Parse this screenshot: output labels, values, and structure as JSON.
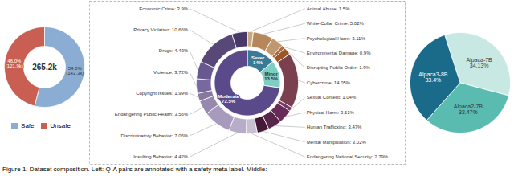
{
  "chart_data": [
    {
      "type": "donut",
      "categories": [
        "Safe",
        "Unsafe"
      ],
      "values": [
        54.0,
        46.0
      ],
      "colors": [
        "#8badd3",
        "#c95f52"
      ],
      "data_labels": true,
      "value_labels": [
        "54.0%\n(143.3k)",
        "46.0%\n(121.9k)"
      ],
      "annotations": [
        "265.2k"
      ],
      "legend": "bottom"
    },
    {
      "type": "donut",
      "categories": [
        "Sever",
        "Minor",
        "Moderate"
      ],
      "values": [
        14.0,
        13.5,
        72.5
      ],
      "colors": [
        "#3a7a96",
        "#7ecec4",
        "#5b4a8a"
      ],
      "data_labels": true,
      "value_labels": [
        "14%",
        "13.5%",
        "72.5%"
      ]
    },
    {
      "type": "donut",
      "categories": [
        "Animal Abuse: 1.5%",
        "White-Collar Crime: 5.02%",
        "Psychological Harm: 3.11%",
        "Environmental Damage: 0.9%",
        "Disrupting Public Order: 1.9%",
        "Cybercrime: 14.05%",
        "Sexual Content: 1.04%",
        "Physical Harm: 3.51%",
        "Human Trafficking: 3.47%",
        "Mental Manipulation: 3.02%",
        "Endangering National Security: 2.79%",
        "Insulting Behavior: 4.42%",
        "Discriminatory Behavior: 7.05%",
        "Endangering Public Health: 3.56%",
        "Copyright Issues: 1.99%",
        "Violence: 3.72%",
        "Drugs: 4.43%",
        "Privacy Violation: 10.66%",
        "Economic Crime: 3.9%"
      ],
      "values": [
        1.5,
        5.02,
        3.11,
        0.9,
        1.9,
        14.05,
        1.04,
        3.51,
        3.47,
        3.02,
        2.79,
        4.42,
        7.05,
        3.56,
        1.99,
        3.72,
        4.43,
        10.66,
        3.9
      ],
      "colors": [
        "#c8a882",
        "#b5875a",
        "#c09870",
        "#b06840",
        "#9a5828",
        "#7a4050",
        "#7a3a65",
        "#6a2a58",
        "#58264a",
        "#45183a",
        "#c8c0d0",
        "#b8adc8",
        "#a89abc",
        "#9888b0",
        "#8878a0",
        "#7868a0",
        "#685890",
        "#584878",
        "#483868"
      ]
    },
    {
      "type": "pie",
      "categories": [
        "Alpaca-7B",
        "Alpaca2-7B",
        "Alpaca3-8B"
      ],
      "values": [
        34.13,
        32.47,
        33.4
      ],
      "colors": [
        "#c8e8e4",
        "#5abcb0",
        "#1a6a8a"
      ],
      "data_labels": true,
      "value_labels": [
        "34.13%",
        "32.47%",
        "33.4%"
      ]
    }
  ],
  "caption": "Figure 1: Dataset composition. Left: Q-A pairs are annotated with a safety meta label. Middle:"
}
